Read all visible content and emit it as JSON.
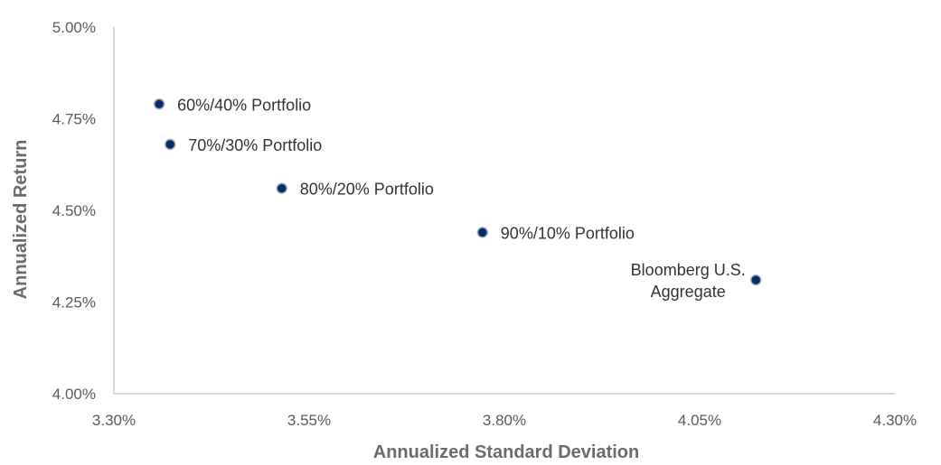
{
  "chart_data": {
    "type": "scatter",
    "title": "",
    "xlabel": "Annualized Standard Deviation",
    "ylabel": "Annualized Return",
    "xlim": [
      3.3,
      4.3
    ],
    "ylim": [
      4.0,
      5.0
    ],
    "x_tick_labels": [
      "3.30%",
      "3.55%",
      "3.80%",
      "4.05%",
      "4.30%"
    ],
    "y_tick_labels": [
      "4.00%",
      "4.25%",
      "4.50%",
      "4.75%",
      "5.00%"
    ],
    "grid": false,
    "legend": "none",
    "marker_color": "#0b2d5e",
    "marker_edge_color": "#9fb3cc",
    "points": [
      {
        "label": "60%/40% Portfolio",
        "x": 3.358,
        "y": 4.79
      },
      {
        "label": "70%/30% Portfolio",
        "x": 3.372,
        "y": 4.68
      },
      {
        "label": "80%/20% Portfolio",
        "x": 3.515,
        "y": 4.56
      },
      {
        "label": "90%/10% Portfolio",
        "x": 3.772,
        "y": 4.44
      },
      {
        "label": "Bloomberg U.S. Aggregate",
        "label_lines": [
          "Bloomberg U.S.",
          "Aggregate"
        ],
        "x": 4.122,
        "y": 4.31
      }
    ]
  }
}
